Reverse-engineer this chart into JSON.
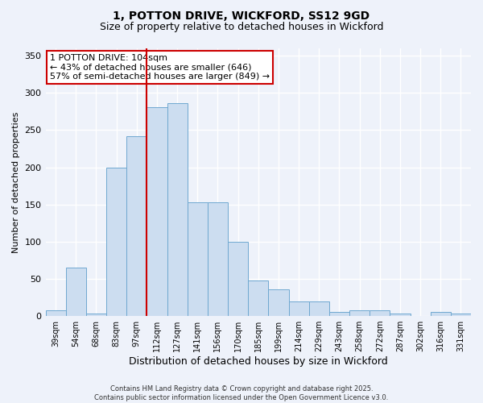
{
  "title_line1": "1, POTTON DRIVE, WICKFORD, SS12 9GD",
  "title_line2": "Size of property relative to detached houses in Wickford",
  "xlabel": "Distribution of detached houses by size in Wickford",
  "ylabel": "Number of detached properties",
  "categories": [
    "39sqm",
    "54sqm",
    "68sqm",
    "83sqm",
    "97sqm",
    "112sqm",
    "127sqm",
    "141sqm",
    "156sqm",
    "170sqm",
    "185sqm",
    "199sqm",
    "214sqm",
    "229sqm",
    "243sqm",
    "258sqm",
    "272sqm",
    "287sqm",
    "302sqm",
    "316sqm",
    "331sqm"
  ],
  "values": [
    8,
    65,
    3,
    200,
    242,
    281,
    286,
    153,
    153,
    100,
    48,
    36,
    20,
    20,
    5,
    8,
    8,
    3,
    0,
    5,
    3
  ],
  "bar_color": "#ccddf0",
  "bar_edgecolor": "#6fa8d0",
  "vline_color": "#cc0000",
  "vline_x": 4.5,
  "annotation_text": "1 POTTON DRIVE: 104sqm\n← 43% of detached houses are smaller (646)\n57% of semi-detached houses are larger (849) →",
  "annotation_box_facecolor": "#ffffff",
  "annotation_box_edgecolor": "#cc0000",
  "ylim": [
    0,
    360
  ],
  "yticks": [
    0,
    50,
    100,
    150,
    200,
    250,
    300,
    350
  ],
  "footer": "Contains HM Land Registry data © Crown copyright and database right 2025.\nContains public sector information licensed under the Open Government Licence v3.0.",
  "bg_color": "#eef2fa",
  "plot_bg_color": "#eef2fa",
  "grid_color": "#ffffff",
  "title1_fontsize": 10,
  "title2_fontsize": 9,
  "xlabel_fontsize": 9,
  "ylabel_fontsize": 8,
  "tick_fontsize": 7,
  "annot_fontsize": 8,
  "footer_fontsize": 6
}
